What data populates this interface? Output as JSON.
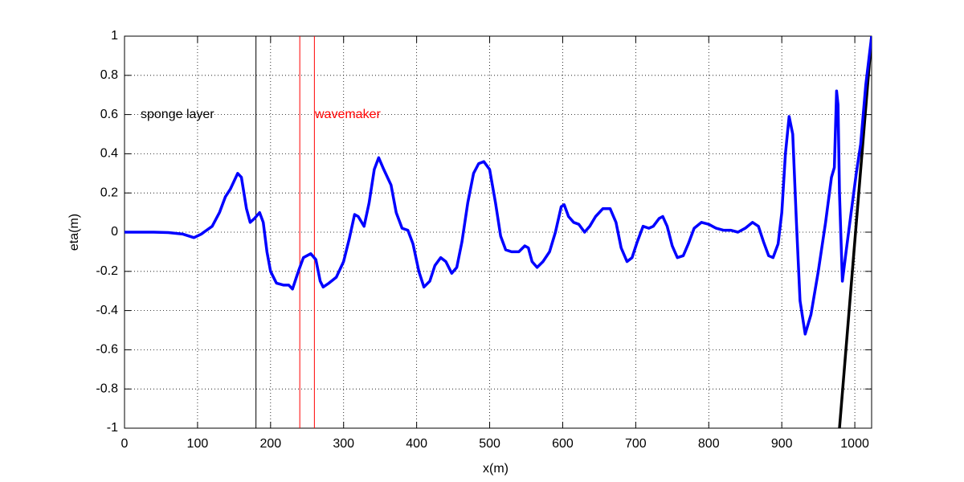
{
  "chart_data": {
    "type": "line",
    "xlabel": "x(m)",
    "ylabel": "eta(m)",
    "xlim": [
      0,
      1023
    ],
    "ylim": [
      -1,
      1
    ],
    "xticks": [
      0,
      100,
      200,
      300,
      400,
      500,
      600,
      700,
      800,
      900,
      1000
    ],
    "yticks": [
      -1,
      -0.8,
      -0.6,
      -0.4,
      -0.2,
      0,
      0.2,
      0.4,
      0.6,
      0.8,
      1
    ],
    "grid": true,
    "reference_lines": [
      {
        "x": 180,
        "color": "#000000"
      },
      {
        "x": 240,
        "color": "#ff0000"
      },
      {
        "x": 260,
        "color": "#ff0000"
      }
    ],
    "annotations": [
      {
        "text": "sponge layer",
        "color": "#000000"
      },
      {
        "text": "wavemaker",
        "color": "#ff0000"
      }
    ],
    "series": [
      {
        "color": "#000000",
        "x": [
          979,
          1023
        ],
        "values": [
          -1,
          1
        ]
      },
      {
        "color": "#0000ff",
        "x": [
          0,
          40,
          60,
          80,
          95,
          105,
          120,
          130,
          138,
          145,
          155,
          160,
          167,
          172,
          178,
          185,
          190,
          195,
          200,
          208,
          218,
          225,
          230,
          238,
          245,
          255,
          262,
          268,
          272,
          280,
          290,
          300,
          308,
          315,
          320,
          328,
          335,
          342,
          348,
          355,
          365,
          372,
          380,
          388,
          395,
          403,
          410,
          418,
          425,
          433,
          440,
          448,
          455,
          462,
          470,
          478,
          485,
          492,
          500,
          508,
          515,
          522,
          530,
          540,
          548,
          553,
          558,
          565,
          573,
          582,
          590,
          598,
          602,
          608,
          615,
          622,
          630,
          637,
          645,
          655,
          665,
          673,
          680,
          688,
          695,
          702,
          710,
          718,
          724,
          732,
          737,
          743,
          750,
          757,
          765,
          772,
          780,
          790,
          800,
          810,
          820,
          830,
          840,
          850,
          860,
          868,
          875,
          882,
          888,
          895,
          900,
          905,
          910,
          915,
          920,
          925,
          932,
          940,
          950,
          960,
          968,
          972,
          975,
          977,
          979,
          983,
          988,
          995,
          1002,
          1008,
          1015,
          1023
        ],
        "values": [
          0,
          0,
          -0.002,
          -0.01,
          -0.028,
          -0.01,
          0.03,
          0.1,
          0.18,
          0.22,
          0.3,
          0.28,
          0.12,
          0.05,
          0.07,
          0.1,
          0.05,
          -0.1,
          -0.2,
          -0.26,
          -0.27,
          -0.27,
          -0.29,
          -0.2,
          -0.13,
          -0.11,
          -0.14,
          -0.25,
          -0.28,
          -0.26,
          -0.23,
          -0.15,
          -0.03,
          0.09,
          0.08,
          0.03,
          0.15,
          0.32,
          0.38,
          0.32,
          0.24,
          0.1,
          0.02,
          0.01,
          -0.06,
          -0.2,
          -0.28,
          -0.25,
          -0.17,
          -0.13,
          -0.15,
          -0.21,
          -0.18,
          -0.05,
          0.15,
          0.3,
          0.35,
          0.36,
          0.32,
          0.15,
          -0.02,
          -0.09,
          -0.1,
          -0.1,
          -0.07,
          -0.08,
          -0.15,
          -0.18,
          -0.15,
          -0.1,
          0,
          0.13,
          0.14,
          0.08,
          0.05,
          0.04,
          0,
          0.03,
          0.08,
          0.12,
          0.12,
          0.05,
          -0.08,
          -0.15,
          -0.13,
          -0.05,
          0.03,
          0.02,
          0.03,
          0.07,
          0.08,
          0.03,
          -0.07,
          -0.13,
          -0.12,
          -0.06,
          0.02,
          0.05,
          0.04,
          0.02,
          0.01,
          0.01,
          0,
          0.02,
          0.05,
          0.03,
          -0.05,
          -0.12,
          -0.13,
          -0.06,
          0.1,
          0.4,
          0.59,
          0.5,
          0.05,
          -0.35,
          -0.52,
          -0.42,
          -0.2,
          0.05,
          0.28,
          0.33,
          0.72,
          0.65,
          0.2,
          -0.25,
          -0.1,
          0.1,
          0.3,
          0.45,
          0.75,
          1
        ]
      }
    ]
  }
}
